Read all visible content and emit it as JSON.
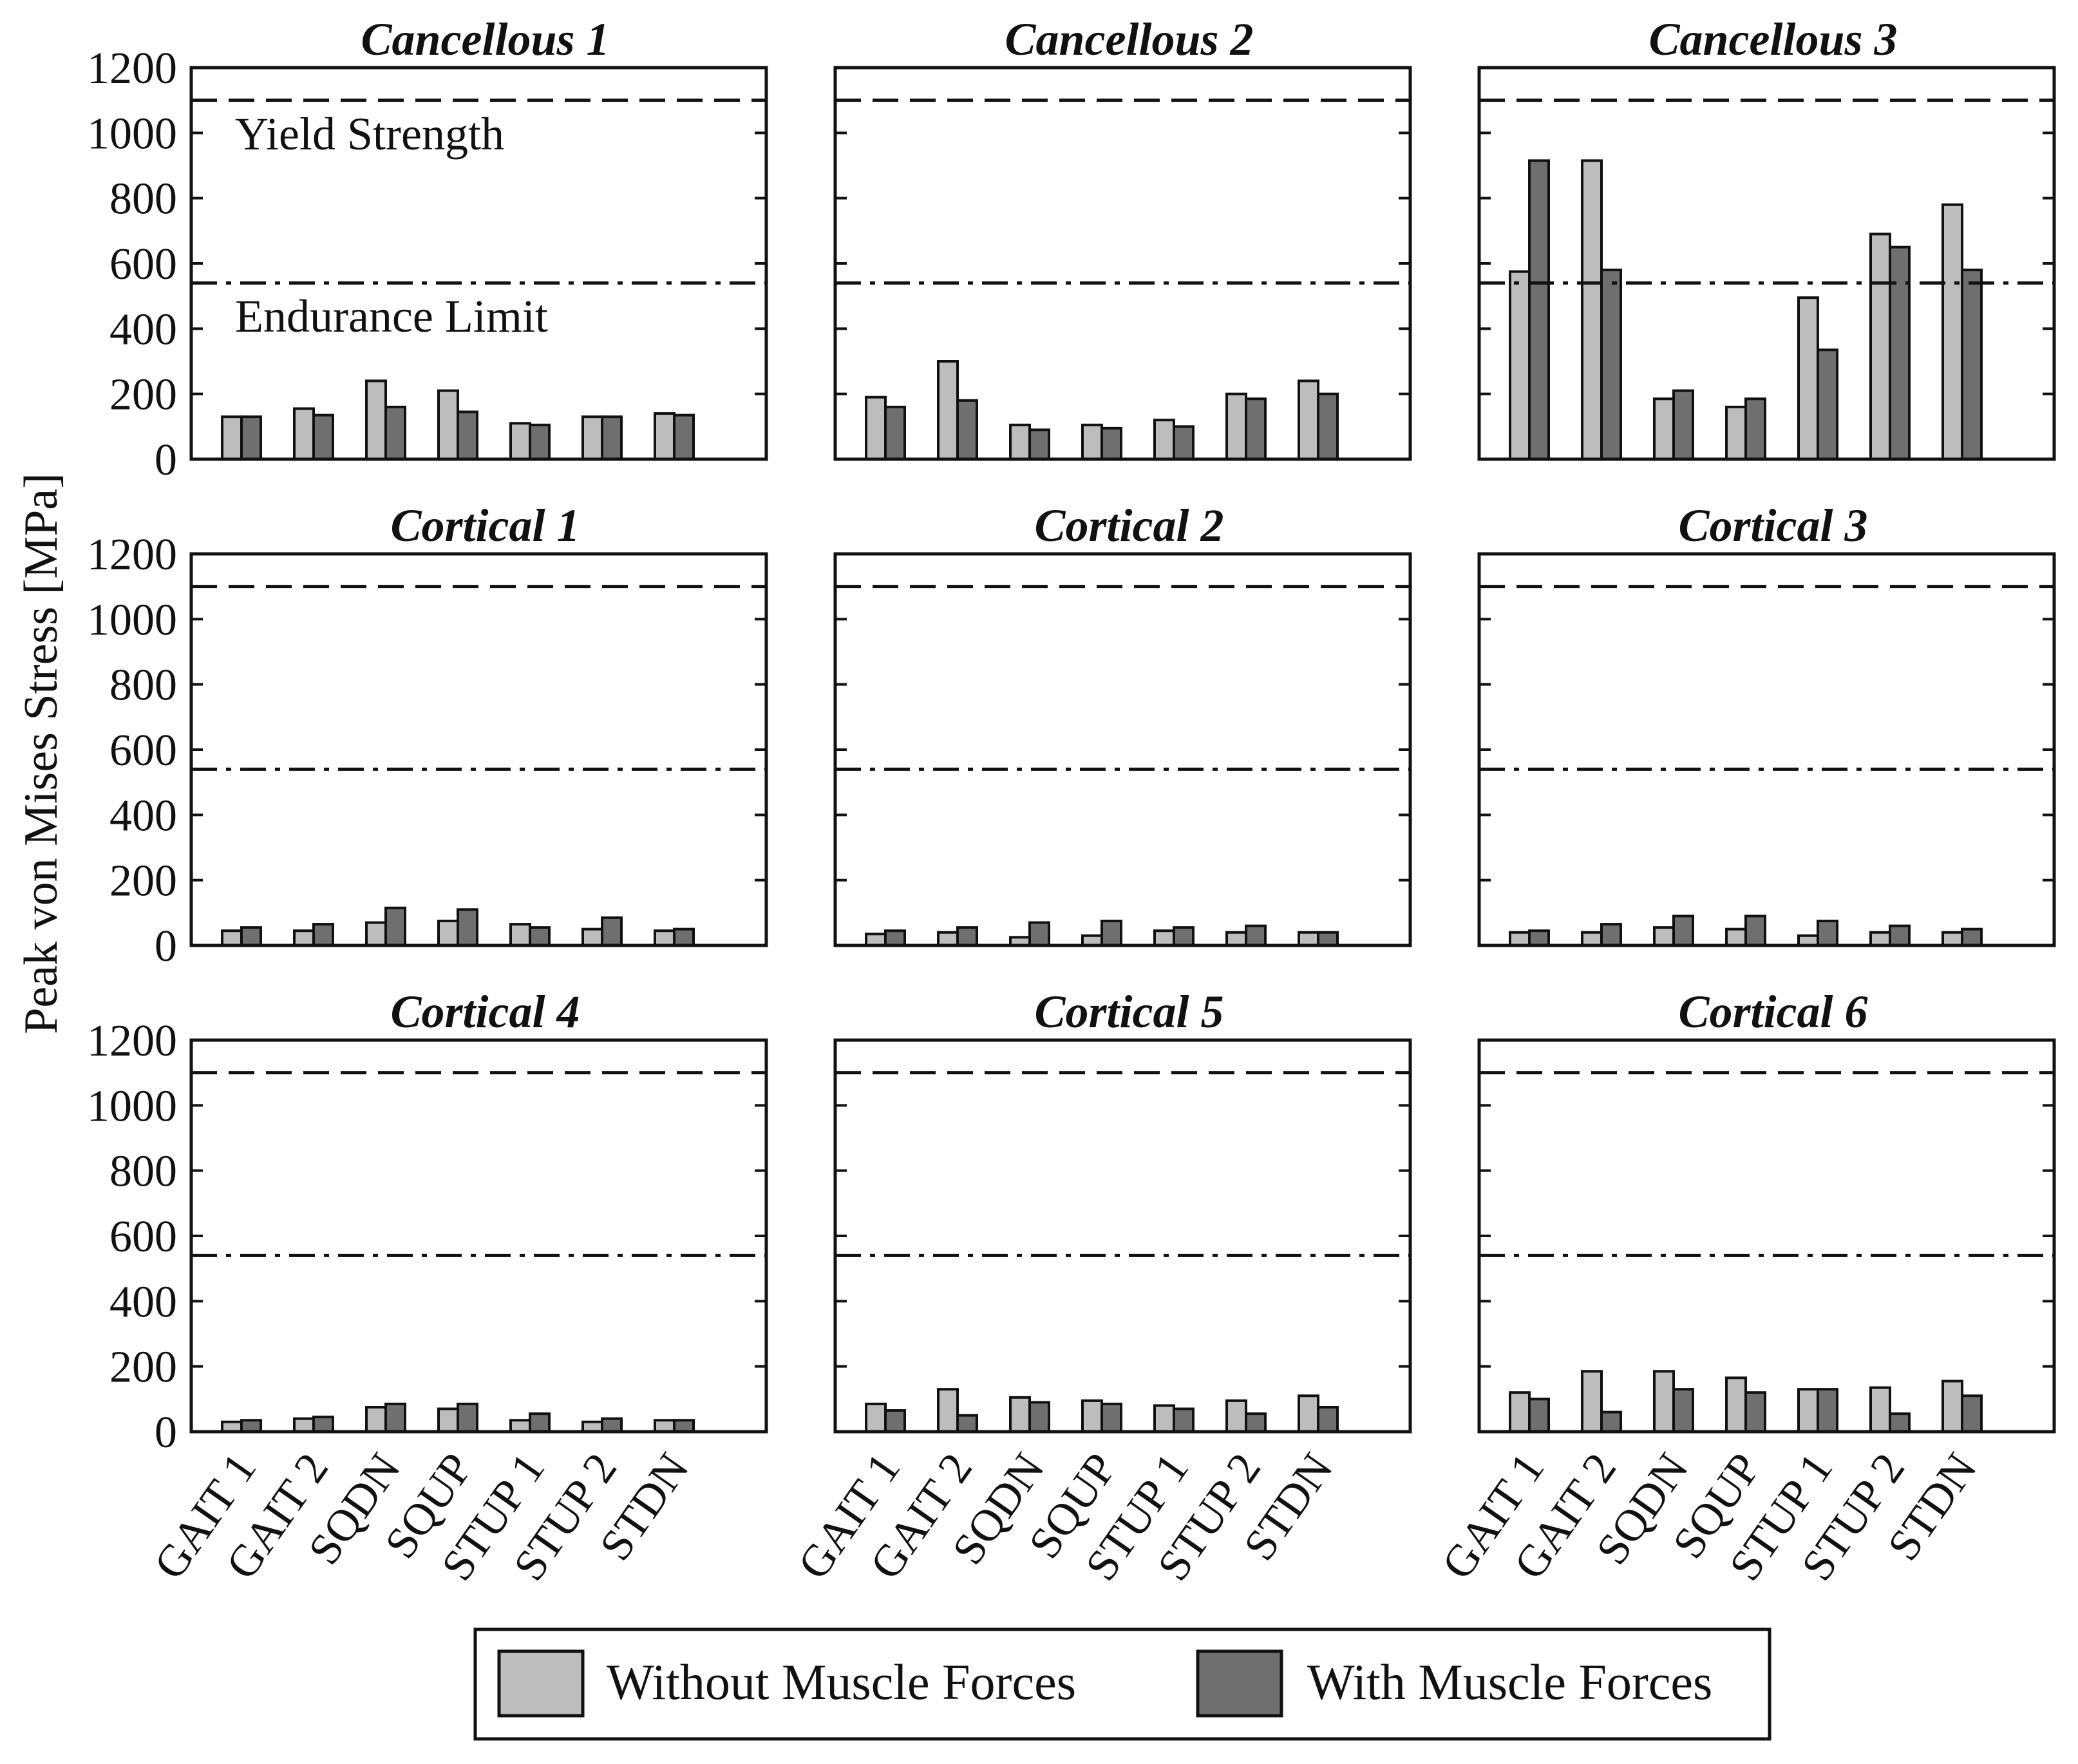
{
  "chart_data": {
    "type": "bar",
    "ylabel": "Peak von Mises Stress [MPa]",
    "ylim": [
      0,
      1200
    ],
    "yticks": [
      0,
      200,
      400,
      600,
      800,
      1000,
      1200
    ],
    "categories": [
      "GAIT 1",
      "GAIT 2",
      "SQDN",
      "SQUP",
      "STUP 1",
      "STUP 2",
      "STDN"
    ],
    "series_names": [
      "Without Muscle Forces",
      "With Muscle Forces"
    ],
    "series_colors": [
      "#bdbdbd",
      "#6f6f6f"
    ],
    "reference_lines": [
      {
        "name": "Yield Strength",
        "value": 1100,
        "style": "dashed"
      },
      {
        "name": "Endurance Limit",
        "value": 540,
        "style": "dash-dot"
      }
    ],
    "legend": {
      "placement": "bottom-center",
      "labels": [
        "Without Muscle Forces",
        "With Muscle Forces"
      ]
    },
    "panels": [
      {
        "title": "Cancellous 1",
        "series": [
          {
            "name": "Without Muscle Forces",
            "values": [
              130,
              155,
              240,
              210,
              110,
              130,
              140
            ]
          },
          {
            "name": "With Muscle Forces",
            "values": [
              130,
              135,
              160,
              145,
              105,
              130,
              135
            ]
          }
        ]
      },
      {
        "title": "Cancellous 2",
        "series": [
          {
            "name": "Without Muscle Forces",
            "values": [
              190,
              300,
              105,
              105,
              120,
              200,
              240
            ]
          },
          {
            "name": "With Muscle Forces",
            "values": [
              160,
              180,
              90,
              95,
              100,
              185,
              200
            ]
          }
        ]
      },
      {
        "title": "Cancellous 3",
        "series": [
          {
            "name": "Without Muscle Forces",
            "values": [
              575,
              915,
              185,
              160,
              495,
              690,
              780
            ]
          },
          {
            "name": "With Muscle Forces",
            "values": [
              915,
              580,
              210,
              185,
              335,
              650,
              580
            ]
          }
        ]
      },
      {
        "title": "Cortical 1",
        "series": [
          {
            "name": "Without Muscle Forces",
            "values": [
              45,
              45,
              70,
              75,
              65,
              50,
              45
            ]
          },
          {
            "name": "With Muscle Forces",
            "values": [
              55,
              65,
              115,
              110,
              55,
              85,
              50
            ]
          }
        ]
      },
      {
        "title": "Cortical 2",
        "series": [
          {
            "name": "Without Muscle Forces",
            "values": [
              35,
              40,
              25,
              30,
              45,
              40,
              40
            ]
          },
          {
            "name": "With Muscle Forces",
            "values": [
              45,
              55,
              70,
              75,
              55,
              60,
              40
            ]
          }
        ]
      },
      {
        "title": "Cortical 3",
        "series": [
          {
            "name": "Without Muscle Forces",
            "values": [
              40,
              40,
              55,
              50,
              30,
              40,
              40
            ]
          },
          {
            "name": "With Muscle Forces",
            "values": [
              45,
              65,
              90,
              90,
              75,
              60,
              50
            ]
          }
        ]
      },
      {
        "title": "Cortical 4",
        "series": [
          {
            "name": "Without Muscle Forces",
            "values": [
              30,
              40,
              75,
              70,
              35,
              30,
              35
            ]
          },
          {
            "name": "With Muscle Forces",
            "values": [
              35,
              45,
              85,
              85,
              55,
              40,
              35
            ]
          }
        ]
      },
      {
        "title": "Cortical 5",
        "series": [
          {
            "name": "Without Muscle Forces",
            "values": [
              85,
              130,
              105,
              95,
              80,
              95,
              110
            ]
          },
          {
            "name": "With Muscle Forces",
            "values": [
              65,
              50,
              90,
              85,
              70,
              55,
              75
            ]
          }
        ]
      },
      {
        "title": "Cortical 6",
        "series": [
          {
            "name": "Without Muscle Forces",
            "values": [
              120,
              185,
              185,
              165,
              130,
              135,
              155
            ]
          },
          {
            "name": "With Muscle Forces",
            "values": [
              100,
              60,
              130,
              120,
              130,
              55,
              110
            ]
          }
        ]
      }
    ],
    "annotations": [
      "Yield Strength",
      "Endurance Limit"
    ]
  }
}
